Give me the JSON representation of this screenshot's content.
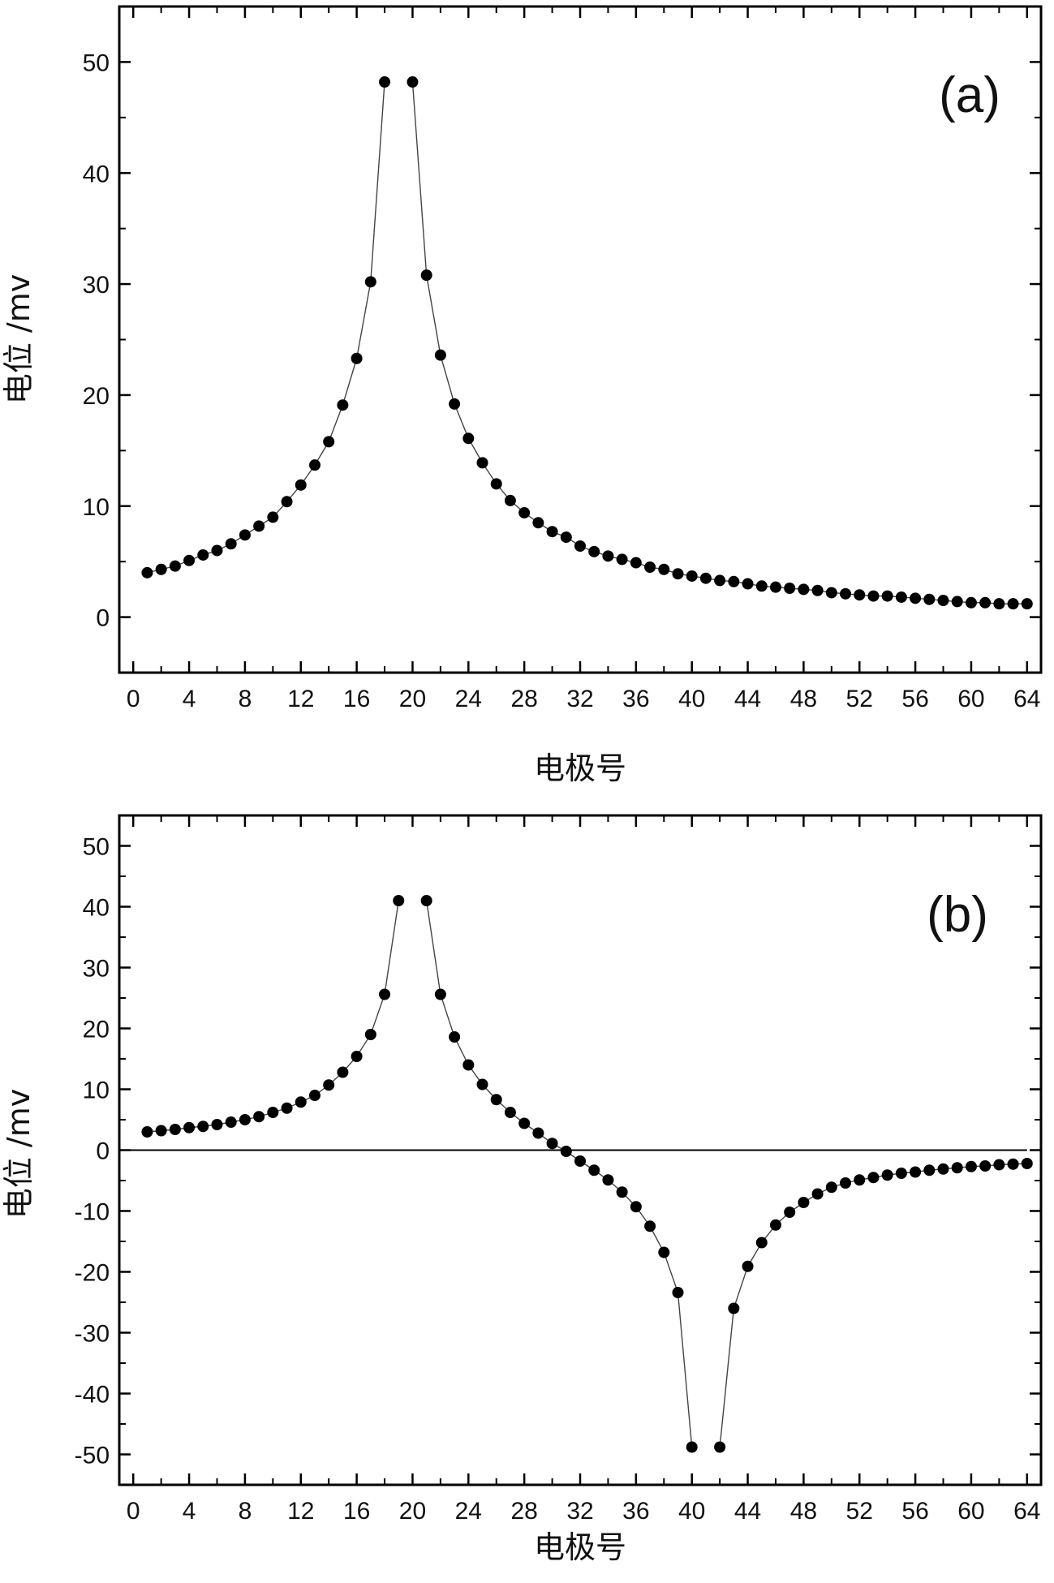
{
  "chart_data": [
    {
      "type": "line",
      "panel_label": "(a)",
      "xlabel": "电极号",
      "ylabel": "电位 /mv",
      "xlim": [
        -1,
        65
      ],
      "ylim": [
        -5,
        55
      ],
      "xticks": [
        0,
        4,
        8,
        12,
        16,
        20,
        24,
        28,
        32,
        36,
        40,
        44,
        48,
        52,
        56,
        60,
        64
      ],
      "yticks": [
        0,
        10,
        20,
        30,
        40,
        50
      ],
      "grid": false,
      "zero_line": false,
      "series": [
        {
          "segments": [
            {
              "x": [
                1,
                2,
                3,
                4,
                5,
                6,
                7,
                8,
                9,
                10,
                11,
                12,
                13,
                14,
                15,
                16,
                17,
                18
              ],
              "y": [
                4.0,
                4.3,
                4.6,
                5.1,
                5.6,
                6.0,
                6.6,
                7.4,
                8.2,
                9.0,
                10.4,
                11.9,
                13.7,
                15.8,
                19.1,
                23.3,
                30.2,
                48.2
              ]
            },
            {
              "x": [
                20,
                21,
                22,
                23,
                24,
                25,
                26,
                27,
                28,
                29,
                30,
                31,
                32,
                33,
                34,
                35,
                36,
                37,
                38,
                39,
                40,
                41,
                42,
                43,
                44,
                45,
                46,
                47,
                48,
                49,
                50,
                51,
                52,
                53,
                54,
                55,
                56,
                57,
                58,
                59,
                60,
                61,
                62,
                63,
                64
              ],
              "y": [
                48.2,
                30.8,
                23.6,
                19.2,
                16.1,
                13.9,
                12.0,
                10.5,
                9.4,
                8.5,
                7.7,
                7.2,
                6.4,
                5.9,
                5.5,
                5.2,
                4.9,
                4.5,
                4.3,
                3.9,
                3.7,
                3.5,
                3.3,
                3.2,
                3.0,
                2.8,
                2.7,
                2.6,
                2.5,
                2.4,
                2.2,
                2.1,
                2.0,
                1.9,
                1.9,
                1.8,
                1.7,
                1.6,
                1.5,
                1.4,
                1.3,
                1.3,
                1.2,
                1.2,
                1.2
              ]
            }
          ]
        }
      ]
    },
    {
      "type": "line",
      "panel_label": "(b)",
      "xlabel": "电极号",
      "ylabel": "电位 /mv",
      "xlim": [
        -1,
        65
      ],
      "ylim": [
        -55,
        55
      ],
      "xticks": [
        0,
        4,
        8,
        12,
        16,
        20,
        24,
        28,
        32,
        36,
        40,
        44,
        48,
        52,
        56,
        60,
        64
      ],
      "yticks": [
        -50,
        -40,
        -30,
        -20,
        -10,
        0,
        10,
        20,
        30,
        40,
        50
      ],
      "grid": false,
      "zero_line": true,
      "series": [
        {
          "segments": [
            {
              "x": [
                1,
                2,
                3,
                4,
                5,
                6,
                7,
                8,
                9,
                10,
                11,
                12,
                13,
                14,
                15,
                16,
                17,
                18,
                19
              ],
              "y": [
                3.0,
                3.2,
                3.4,
                3.7,
                3.9,
                4.2,
                4.6,
                5.0,
                5.5,
                6.2,
                6.9,
                7.9,
                9.0,
                10.7,
                12.8,
                15.4,
                19.0,
                25.6,
                41.0
              ]
            },
            {
              "x": [
                21,
                22,
                23,
                24,
                25,
                26,
                27,
                28,
                29,
                30,
                31,
                32,
                33,
                34,
                35,
                36,
                37,
                38,
                39,
                40
              ],
              "y": [
                41.0,
                25.6,
                18.6,
                14.0,
                10.8,
                8.3,
                6.2,
                4.4,
                2.8,
                1.1,
                -0.2,
                -1.8,
                -3.3,
                -4.9,
                -6.9,
                -9.3,
                -12.5,
                -16.8,
                -23.4,
                -48.8
              ]
            },
            {
              "x": [
                42,
                43,
                44,
                45,
                46,
                47,
                48,
                49,
                50,
                51,
                52,
                53,
                54,
                55,
                56,
                57,
                58,
                59,
                60,
                61,
                62,
                63,
                64
              ],
              "y": [
                -48.8,
                -26.0,
                -19.1,
                -15.2,
                -12.3,
                -10.2,
                -8.6,
                -7.2,
                -6.1,
                -5.4,
                -4.9,
                -4.5,
                -4.1,
                -3.8,
                -3.6,
                -3.3,
                -3.1,
                -2.9,
                -2.7,
                -2.6,
                -2.4,
                -2.3,
                -2.2
              ]
            }
          ]
        }
      ]
    }
  ]
}
